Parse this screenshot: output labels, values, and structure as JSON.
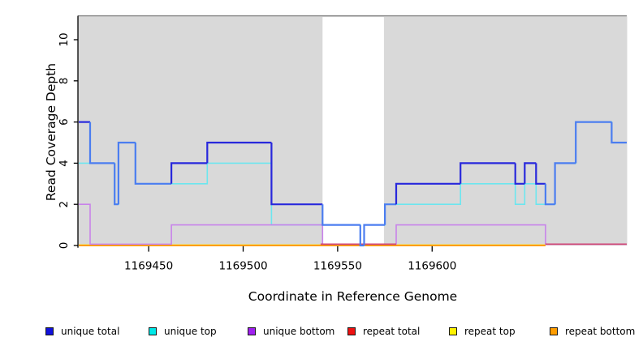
{
  "chart_data": {
    "type": "line",
    "subtype": "step",
    "title": "",
    "xlabel": "Coordinate in Reference Genome",
    "ylabel": "Read Coverage Depth",
    "xlim": [
      1169413,
      1169703
    ],
    "ylim": [
      0,
      11.2
    ],
    "x_ticks": [
      1169450,
      1169500,
      1169550,
      1169600
    ],
    "y_ticks": [
      0,
      2,
      4,
      6,
      8,
      10
    ],
    "grid": false,
    "plot_background": "#d9d9d9",
    "uncovered_region": {
      "x0": 1169542,
      "x1": 1169574.5,
      "y_top": 11.1,
      "color": "#ffffff"
    },
    "series": [
      {
        "name": "unique total",
        "color": "#2828dc",
        "color_overlap": "#4b7df0",
        "points": [
          [
            1169413,
            6
          ],
          [
            1169419,
            4
          ],
          [
            1169432,
            2
          ],
          [
            1169434,
            5
          ],
          [
            1169443,
            3
          ],
          [
            1169462,
            4
          ],
          [
            1169481,
            5
          ],
          [
            1169515,
            2
          ],
          [
            1169542,
            1
          ],
          [
            1169562,
            0
          ],
          [
            1169564,
            1
          ],
          [
            1169575,
            2
          ],
          [
            1169581,
            3
          ],
          [
            1169615,
            4
          ],
          [
            1169644,
            3
          ],
          [
            1169649,
            4
          ],
          [
            1169655,
            3
          ],
          [
            1169660,
            2
          ],
          [
            1169665,
            4
          ],
          [
            1169676,
            6
          ],
          [
            1169695,
            5
          ],
          [
            1169703,
            5
          ]
        ]
      },
      {
        "name": "unique top",
        "color": "#6ce6ef",
        "points": [
          [
            1169413,
            4
          ],
          [
            1169432,
            2
          ],
          [
            1169434,
            5
          ],
          [
            1169443,
            3
          ],
          [
            1169481,
            4
          ],
          [
            1169515,
            1
          ],
          [
            1169562,
            0
          ],
          [
            1169564,
            1
          ],
          [
            1169575,
            2
          ],
          [
            1169615,
            3
          ],
          [
            1169644,
            2
          ],
          [
            1169649,
            3
          ],
          [
            1169655,
            2
          ],
          [
            1169665,
            4
          ],
          [
            1169676,
            6
          ],
          [
            1169695,
            5
          ],
          [
            1169703,
            5
          ]
        ]
      },
      {
        "name": "unique bottom",
        "color": "#c883ea",
        "points": [
          [
            1169413,
            2
          ],
          [
            1169419,
            0
          ],
          [
            1169462,
            1
          ],
          [
            1169542,
            0
          ],
          [
            1169581,
            1
          ],
          [
            1169660,
            0
          ],
          [
            1169703,
            0
          ]
        ]
      },
      {
        "name": "repeat total",
        "color": "#d04878",
        "value": 0,
        "segments": [
          [
            1169541,
            1169581
          ],
          [
            1169660,
            1169703
          ]
        ]
      },
      {
        "name": "repeat top",
        "color": "#ffe60a",
        "points": [
          [
            1169413,
            0
          ],
          [
            1169660,
            0
          ]
        ]
      },
      {
        "name": "repeat bottom",
        "color": "#ff9e00",
        "points": [
          [
            1169413,
            0
          ],
          [
            1169660,
            0
          ]
        ]
      }
    ],
    "legend": [
      {
        "label": "unique total",
        "color": "#1111dd"
      },
      {
        "label": "unique top",
        "color": "#00e8e8"
      },
      {
        "label": "unique bottom",
        "color": "#a020f0"
      },
      {
        "label": "repeat total",
        "color": "#ee1111"
      },
      {
        "label": "repeat top",
        "color": "#fff200"
      },
      {
        "label": "repeat bottom",
        "color": "#ff9d00"
      }
    ],
    "legend_position": "bottom"
  }
}
